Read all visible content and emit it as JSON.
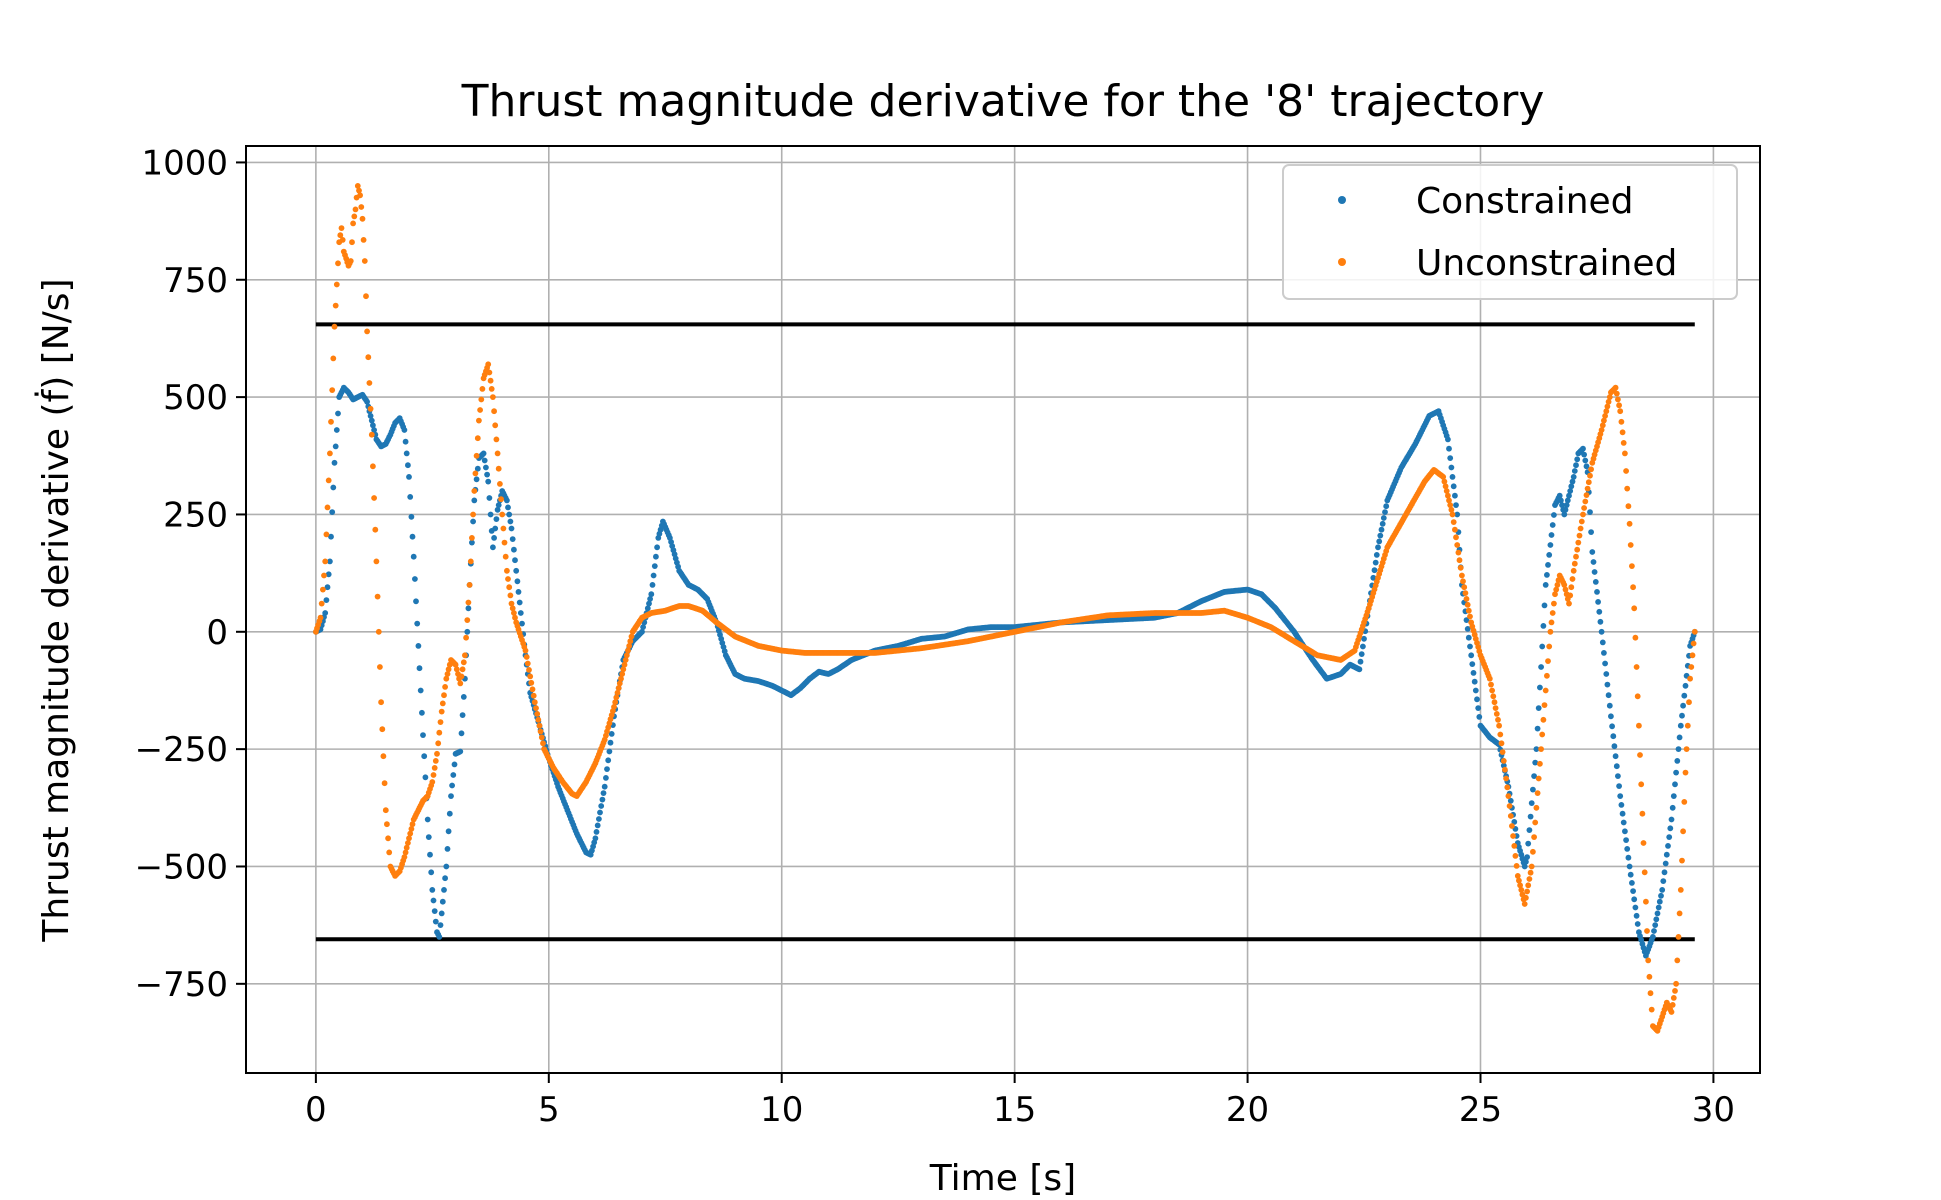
{
  "chart_data": {
    "type": "scatter",
    "title": "Thrust magnitude derivative for the '8' trajectory",
    "xlabel": "Time [s]",
    "ylabel": "Thrust magnitude derivative (ḟ) [N/s]",
    "xlim": [
      -1.5,
      31
    ],
    "ylim": [
      -940,
      1035
    ],
    "x_ticks": [
      0,
      5,
      10,
      15,
      20,
      25,
      30
    ],
    "x_tick_labels": [
      "0",
      "5",
      "10",
      "15",
      "20",
      "25",
      "30"
    ],
    "y_ticks": [
      1000,
      750,
      500,
      250,
      0,
      -250,
      -500,
      -750
    ],
    "y_tick_labels": [
      "1000",
      "750",
      "500",
      "250",
      "0",
      "−250",
      "−500",
      "−750"
    ],
    "grid": true,
    "legend_position": "top-right",
    "reference_lines": [
      {
        "y": 655,
        "x_range": [
          0,
          29.6
        ],
        "color": "#000000"
      },
      {
        "y": -655,
        "x_range": [
          0,
          29.6
        ],
        "color": "#000000"
      }
    ],
    "series": [
      {
        "name": "Constrained",
        "color": "#1f77b4",
        "points": [
          [
            0.0,
            0
          ],
          [
            0.1,
            5
          ],
          [
            0.2,
            40
          ],
          [
            0.3,
            150
          ],
          [
            0.4,
            360
          ],
          [
            0.5,
            500
          ],
          [
            0.6,
            520
          ],
          [
            0.7,
            510
          ],
          [
            0.8,
            495
          ],
          [
            0.9,
            500
          ],
          [
            1.0,
            505
          ],
          [
            1.1,
            490
          ],
          [
            1.2,
            450
          ],
          [
            1.3,
            410
          ],
          [
            1.4,
            395
          ],
          [
            1.5,
            400
          ],
          [
            1.6,
            420
          ],
          [
            1.7,
            445
          ],
          [
            1.8,
            455
          ],
          [
            1.9,
            430
          ],
          [
            2.0,
            330
          ],
          [
            2.1,
            160
          ],
          [
            2.2,
            -30
          ],
          [
            2.3,
            -220
          ],
          [
            2.4,
            -400
          ],
          [
            2.5,
            -550
          ],
          [
            2.6,
            -640
          ],
          [
            2.65,
            -650
          ],
          [
            2.7,
            -600
          ],
          [
            2.8,
            -500
          ],
          [
            2.9,
            -350
          ],
          [
            3.0,
            -260
          ],
          [
            3.1,
            -255
          ],
          [
            3.2,
            -100
          ],
          [
            3.3,
            100
          ],
          [
            3.4,
            280
          ],
          [
            3.5,
            370
          ],
          [
            3.6,
            380
          ],
          [
            3.7,
            320
          ],
          [
            3.8,
            180
          ],
          [
            3.9,
            260
          ],
          [
            4.0,
            300
          ],
          [
            4.1,
            280
          ],
          [
            4.2,
            220
          ],
          [
            4.3,
            130
          ],
          [
            4.4,
            40
          ],
          [
            4.5,
            -50
          ],
          [
            4.6,
            -130
          ],
          [
            4.8,
            -200
          ],
          [
            5.0,
            -270
          ],
          [
            5.2,
            -330
          ],
          [
            5.4,
            -380
          ],
          [
            5.6,
            -430
          ],
          [
            5.8,
            -470
          ],
          [
            5.9,
            -475
          ],
          [
            6.0,
            -440
          ],
          [
            6.2,
            -330
          ],
          [
            6.4,
            -180
          ],
          [
            6.6,
            -60
          ],
          [
            6.8,
            -20
          ],
          [
            7.0,
            0
          ],
          [
            7.2,
            80
          ],
          [
            7.35,
            200
          ],
          [
            7.45,
            235
          ],
          [
            7.6,
            200
          ],
          [
            7.8,
            130
          ],
          [
            8.0,
            100
          ],
          [
            8.2,
            90
          ],
          [
            8.4,
            70
          ],
          [
            8.6,
            20
          ],
          [
            8.8,
            -50
          ],
          [
            9.0,
            -90
          ],
          [
            9.2,
            -100
          ],
          [
            9.5,
            -105
          ],
          [
            9.8,
            -115
          ],
          [
            10.0,
            -125
          ],
          [
            10.2,
            -135
          ],
          [
            10.4,
            -120
          ],
          [
            10.6,
            -100
          ],
          [
            10.8,
            -85
          ],
          [
            11.0,
            -90
          ],
          [
            11.2,
            -80
          ],
          [
            11.5,
            -60
          ],
          [
            12.0,
            -40
          ],
          [
            12.5,
            -30
          ],
          [
            13.0,
            -15
          ],
          [
            13.5,
            -10
          ],
          [
            14.0,
            5
          ],
          [
            14.5,
            10
          ],
          [
            15.0,
            10
          ],
          [
            15.5,
            15
          ],
          [
            16.0,
            20
          ],
          [
            17.0,
            25
          ],
          [
            18.0,
            30
          ],
          [
            18.5,
            40
          ],
          [
            19.0,
            65
          ],
          [
            19.5,
            85
          ],
          [
            20.0,
            90
          ],
          [
            20.3,
            80
          ],
          [
            20.6,
            50
          ],
          [
            21.0,
            0
          ],
          [
            21.4,
            -60
          ],
          [
            21.7,
            -100
          ],
          [
            22.0,
            -90
          ],
          [
            22.2,
            -70
          ],
          [
            22.4,
            -80
          ],
          [
            22.6,
            50
          ],
          [
            22.8,
            180
          ],
          [
            23.0,
            280
          ],
          [
            23.3,
            350
          ],
          [
            23.6,
            400
          ],
          [
            23.9,
            460
          ],
          [
            24.1,
            470
          ],
          [
            24.3,
            410
          ],
          [
            24.5,
            250
          ],
          [
            24.6,
            100
          ],
          [
            24.8,
            -50
          ],
          [
            25.0,
            -200
          ],
          [
            25.2,
            -225
          ],
          [
            25.4,
            -240
          ],
          [
            25.6,
            -330
          ],
          [
            25.8,
            -450
          ],
          [
            25.95,
            -500
          ],
          [
            26.0,
            -480
          ],
          [
            26.2,
            -250
          ],
          [
            26.4,
            100
          ],
          [
            26.6,
            270
          ],
          [
            26.7,
            290
          ],
          [
            26.8,
            250
          ],
          [
            27.0,
            330
          ],
          [
            27.1,
            380
          ],
          [
            27.2,
            390
          ],
          [
            27.3,
            340
          ],
          [
            27.4,
            170
          ],
          [
            27.6,
            0
          ],
          [
            27.8,
            -180
          ],
          [
            28.0,
            -350
          ],
          [
            28.2,
            -500
          ],
          [
            28.4,
            -640
          ],
          [
            28.55,
            -690
          ],
          [
            28.7,
            -650
          ],
          [
            28.9,
            -550
          ],
          [
            29.1,
            -400
          ],
          [
            29.3,
            -200
          ],
          [
            29.5,
            -30
          ],
          [
            29.6,
            0
          ]
        ]
      },
      {
        "name": "Unconstrained",
        "color": "#ff7f0e",
        "points": [
          [
            0.0,
            0
          ],
          [
            0.1,
            30
          ],
          [
            0.2,
            150
          ],
          [
            0.3,
            380
          ],
          [
            0.4,
            650
          ],
          [
            0.5,
            830
          ],
          [
            0.55,
            860
          ],
          [
            0.6,
            810
          ],
          [
            0.7,
            780
          ],
          [
            0.75,
            790
          ],
          [
            0.8,
            870
          ],
          [
            0.85,
            900
          ],
          [
            0.9,
            950
          ],
          [
            0.95,
            930
          ],
          [
            1.0,
            880
          ],
          [
            1.05,
            790
          ],
          [
            1.1,
            640
          ],
          [
            1.2,
            420
          ],
          [
            1.3,
            150
          ],
          [
            1.4,
            -150
          ],
          [
            1.5,
            -380
          ],
          [
            1.6,
            -500
          ],
          [
            1.7,
            -520
          ],
          [
            1.8,
            -510
          ],
          [
            1.9,
            -480
          ],
          [
            2.0,
            -440
          ],
          [
            2.1,
            -400
          ],
          [
            2.2,
            -380
          ],
          [
            2.3,
            -360
          ],
          [
            2.4,
            -350
          ],
          [
            2.5,
            -320
          ],
          [
            2.6,
            -260
          ],
          [
            2.7,
            -170
          ],
          [
            2.8,
            -100
          ],
          [
            2.9,
            -60
          ],
          [
            3.0,
            -70
          ],
          [
            3.1,
            -110
          ],
          [
            3.2,
            -50
          ],
          [
            3.3,
            100
          ],
          [
            3.4,
            300
          ],
          [
            3.5,
            450
          ],
          [
            3.6,
            540
          ],
          [
            3.7,
            570
          ],
          [
            3.8,
            500
          ],
          [
            3.9,
            380
          ],
          [
            4.0,
            250
          ],
          [
            4.1,
            130
          ],
          [
            4.2,
            60
          ],
          [
            4.3,
            20
          ],
          [
            4.5,
            -40
          ],
          [
            4.7,
            -150
          ],
          [
            4.9,
            -250
          ],
          [
            5.1,
            -290
          ],
          [
            5.3,
            -320
          ],
          [
            5.5,
            -345
          ],
          [
            5.6,
            -350
          ],
          [
            5.8,
            -320
          ],
          [
            6.0,
            -280
          ],
          [
            6.2,
            -230
          ],
          [
            6.4,
            -160
          ],
          [
            6.6,
            -80
          ],
          [
            6.8,
            0
          ],
          [
            7.0,
            30
          ],
          [
            7.2,
            40
          ],
          [
            7.5,
            45
          ],
          [
            7.8,
            55
          ],
          [
            8.0,
            55
          ],
          [
            8.3,
            45
          ],
          [
            8.6,
            20
          ],
          [
            9.0,
            -10
          ],
          [
            9.5,
            -30
          ],
          [
            10.0,
            -40
          ],
          [
            10.5,
            -45
          ],
          [
            11.0,
            -45
          ],
          [
            12.0,
            -45
          ],
          [
            13.0,
            -35
          ],
          [
            14.0,
            -20
          ],
          [
            15.0,
            0
          ],
          [
            15.5,
            10
          ],
          [
            16.0,
            20
          ],
          [
            17.0,
            35
          ],
          [
            18.0,
            40
          ],
          [
            19.0,
            40
          ],
          [
            19.5,
            45
          ],
          [
            20.0,
            30
          ],
          [
            20.5,
            10
          ],
          [
            21.0,
            -20
          ],
          [
            21.5,
            -50
          ],
          [
            22.0,
            -60
          ],
          [
            22.3,
            -40
          ],
          [
            22.6,
            50
          ],
          [
            23.0,
            180
          ],
          [
            23.4,
            250
          ],
          [
            23.8,
            320
          ],
          [
            24.0,
            345
          ],
          [
            24.2,
            330
          ],
          [
            24.4,
            250
          ],
          [
            24.6,
            120
          ],
          [
            24.8,
            20
          ],
          [
            25.0,
            -50
          ],
          [
            25.2,
            -100
          ],
          [
            25.4,
            -200
          ],
          [
            25.6,
            -350
          ],
          [
            25.8,
            -520
          ],
          [
            25.95,
            -580
          ],
          [
            26.1,
            -500
          ],
          [
            26.3,
            -250
          ],
          [
            26.5,
            0
          ],
          [
            26.6,
            80
          ],
          [
            26.7,
            120
          ],
          [
            26.8,
            100
          ],
          [
            26.9,
            60
          ],
          [
            27.0,
            130
          ],
          [
            27.2,
            250
          ],
          [
            27.4,
            360
          ],
          [
            27.6,
            430
          ],
          [
            27.8,
            510
          ],
          [
            27.9,
            520
          ],
          [
            28.0,
            470
          ],
          [
            28.1,
            380
          ],
          [
            28.2,
            230
          ],
          [
            28.3,
            50
          ],
          [
            28.4,
            -200
          ],
          [
            28.5,
            -450
          ],
          [
            28.6,
            -700
          ],
          [
            28.7,
            -840
          ],
          [
            28.8,
            -850
          ],
          [
            28.9,
            -820
          ],
          [
            29.0,
            -790
          ],
          [
            29.1,
            -810
          ],
          [
            29.2,
            -750
          ],
          [
            29.3,
            -550
          ],
          [
            29.4,
            -300
          ],
          [
            29.5,
            -100
          ],
          [
            29.6,
            0
          ]
        ]
      }
    ]
  }
}
